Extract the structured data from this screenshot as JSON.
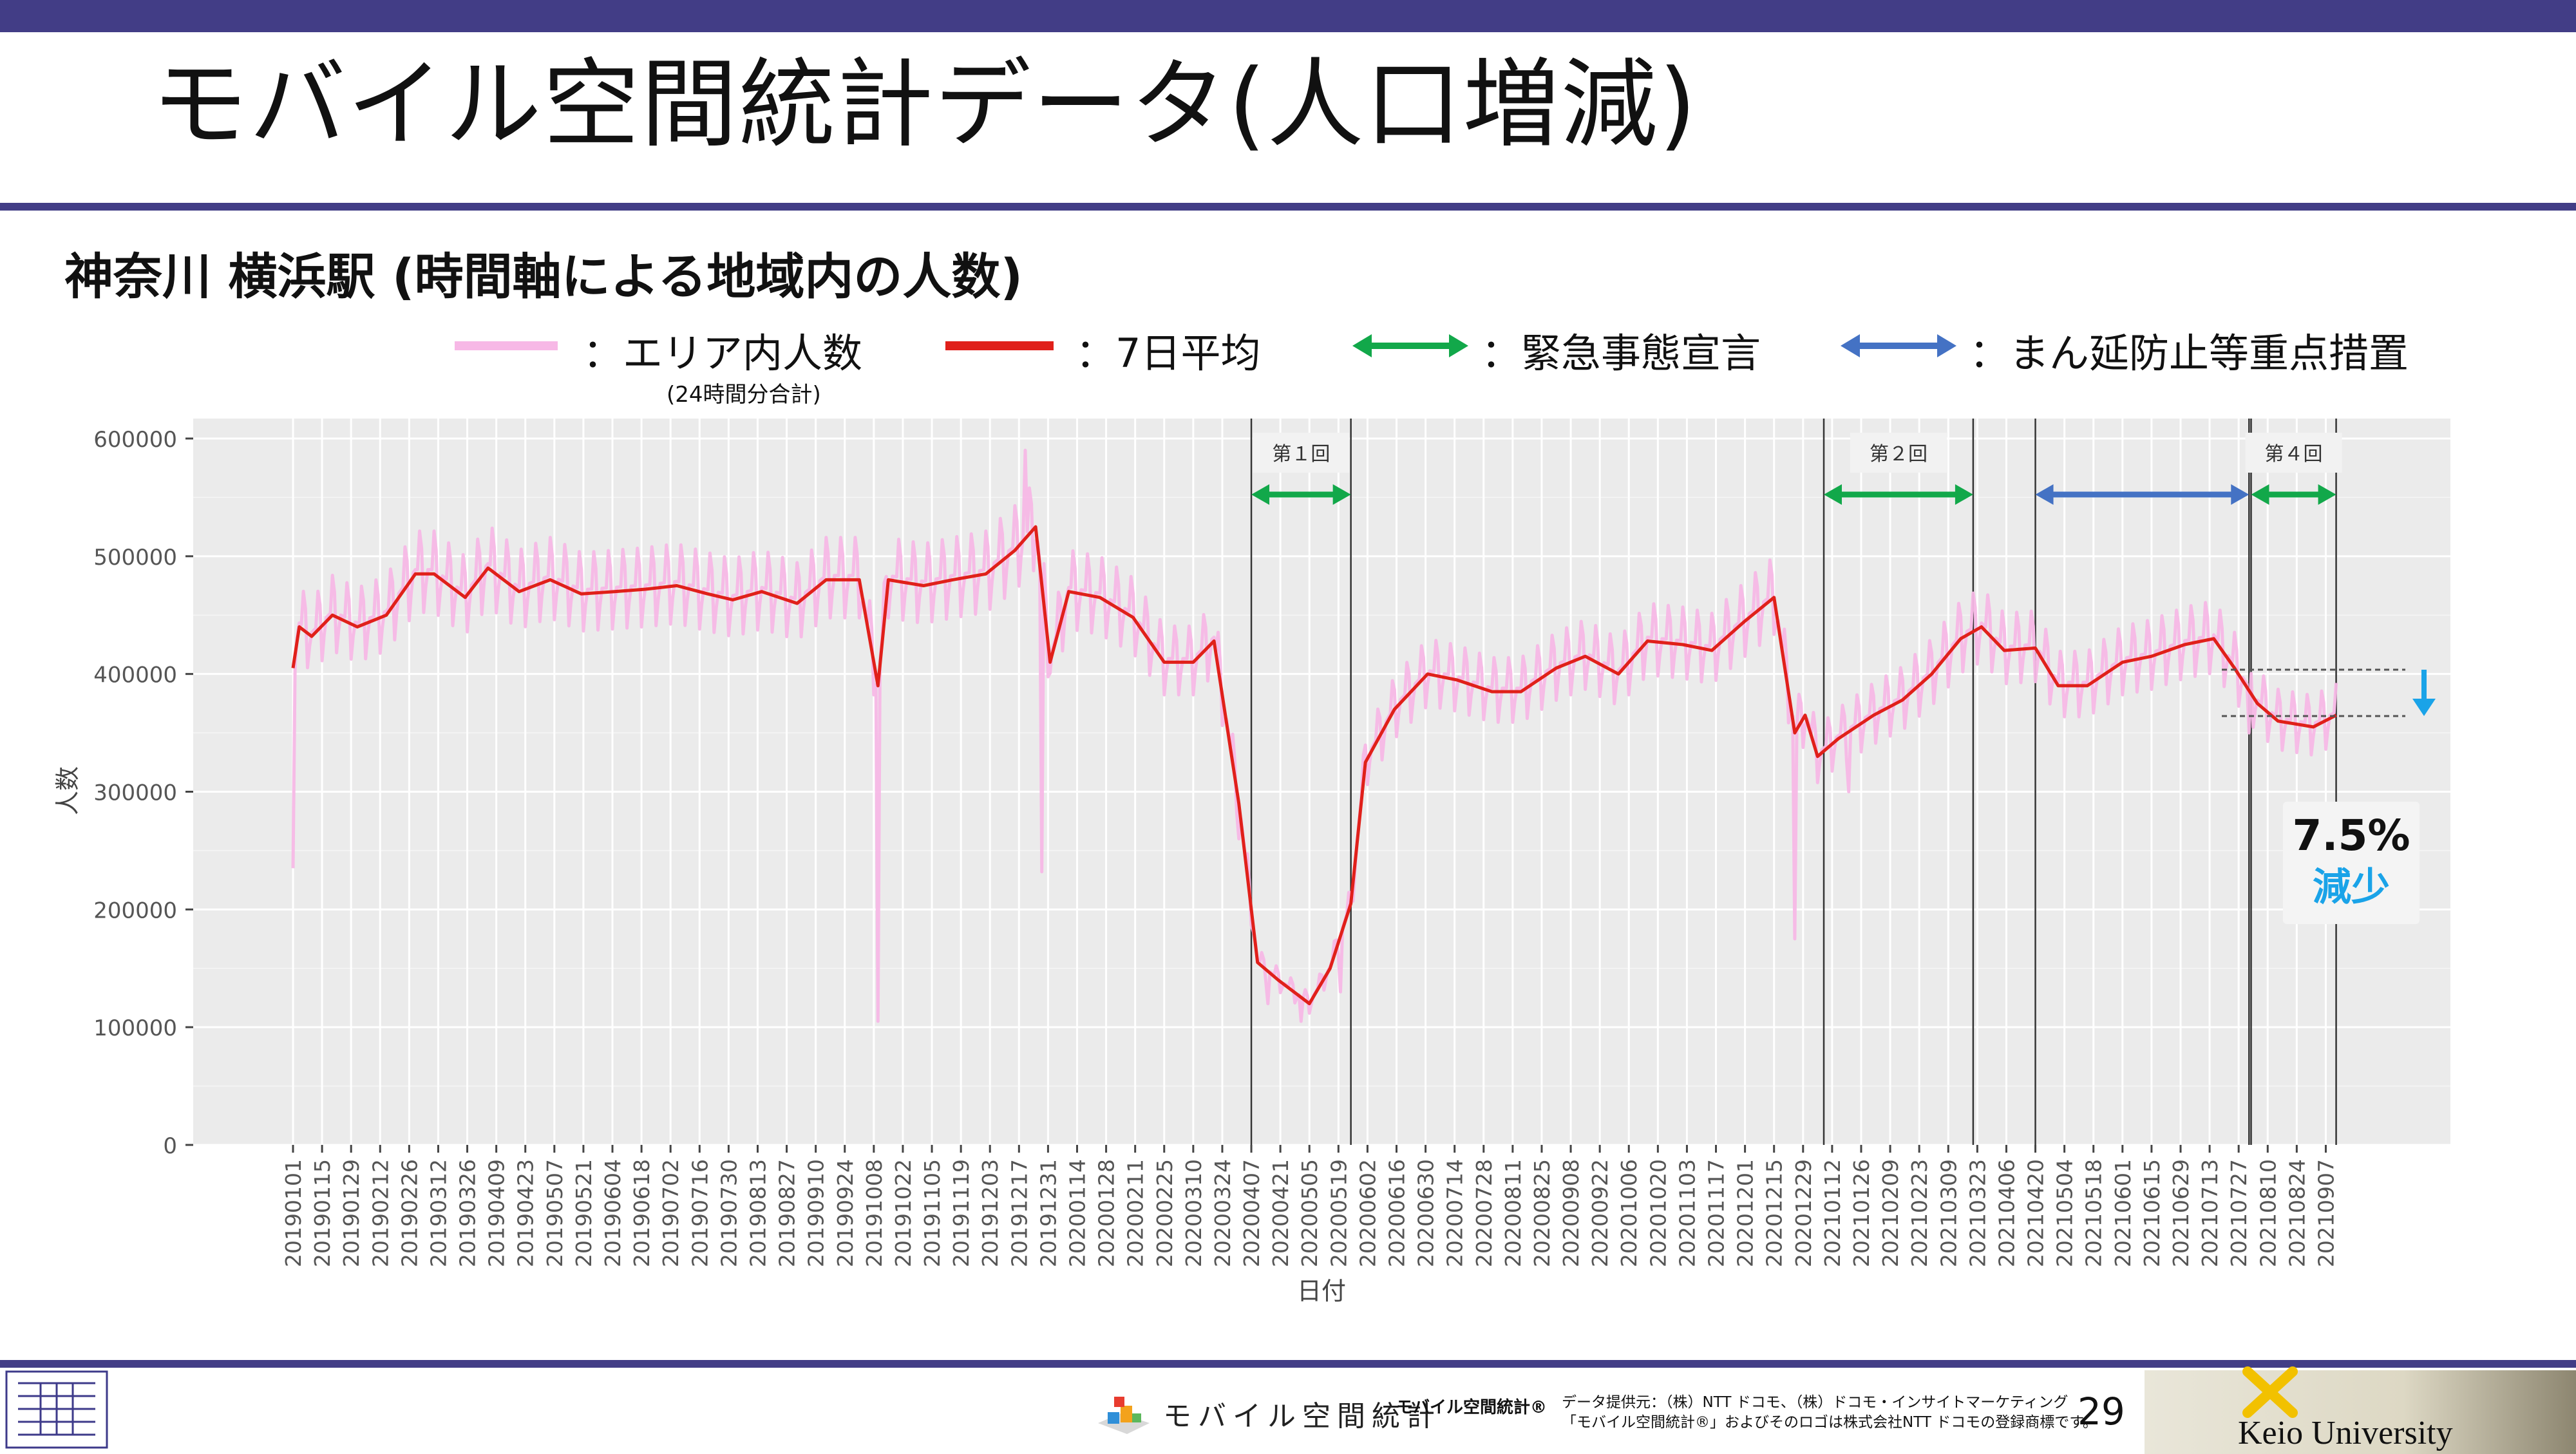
{
  "header": {
    "title": "モバイル空間統計データ(人口増減)",
    "subtitle": "神奈川 横浜駅 (時間軸による地域内の人数)"
  },
  "legend": {
    "items": [
      {
        "label": "：エリア内人数",
        "note": "(24時間分合計)",
        "color": "#f7b8e6"
      },
      {
        "label": "：7日平均",
        "color": "#e0201a"
      },
      {
        "label": "：緊急事態宣言",
        "color": "#12a84a"
      },
      {
        "label": "：まん延防止等重点措置",
        "color": "#4472c4"
      }
    ]
  },
  "chart_data": {
    "type": "line",
    "xlabel": "日付",
    "ylabel": "人数",
    "ylim": [
      0,
      600000
    ],
    "yticks": [
      "0",
      "100000",
      "200000",
      "300000",
      "400000",
      "500000",
      "600000"
    ],
    "x_range": [
      "20190101",
      "20210914"
    ],
    "xticks": [
      "20190101",
      "20190115",
      "20190129",
      "20190212",
      "20190226",
      "20190312",
      "20190326",
      "20190409",
      "20190423",
      "20190507",
      "20190521",
      "20190604",
      "20190618",
      "20190702",
      "20190716",
      "20190730",
      "20190813",
      "20190827",
      "20190910",
      "20190924",
      "20191008",
      "20191022",
      "20191105",
      "20191119",
      "20191203",
      "20191217",
      "20191231",
      "20200114",
      "20200128",
      "20200211",
      "20200225",
      "20200310",
      "20200324",
      "20200407",
      "20200421",
      "20200505",
      "20200519",
      "20200602",
      "20200616",
      "20200630",
      "20200714",
      "20200728",
      "20200811",
      "20200825",
      "20200908",
      "20200922",
      "20201006",
      "20201020",
      "20201103",
      "20201117",
      "20201201",
      "20201215",
      "20201229",
      "20210112",
      "20210126",
      "20210209",
      "20210223",
      "20210309",
      "20210323",
      "20210406",
      "20210420",
      "20210504",
      "20210518",
      "20210601",
      "20210615",
      "20210629",
      "20210713",
      "20210727",
      "20210810",
      "20210824",
      "20210907"
    ],
    "grid": true,
    "series": [
      {
        "name": "エリア内人数",
        "color": "#f7b8e6",
        "style": "daily",
        "x": [
          "20190101",
          "20190107",
          "20190201",
          "20190301",
          "20190401",
          "20190501",
          "20190601",
          "20190701",
          "20190801",
          "20190901",
          "20191001",
          "20191010",
          "20191020",
          "20191101",
          "20191201",
          "20191220",
          "20191228",
          "20200105",
          "20200201",
          "20200301",
          "20200320",
          "20200401",
          "20200415",
          "20200501",
          "20200520",
          "20200601",
          "20200615",
          "20200701",
          "20200801",
          "20200901",
          "20201001",
          "20201101",
          "20201201",
          "20201225",
          "20210105",
          "20210120",
          "20210201",
          "20210301",
          "20210320",
          "20210401",
          "20210501",
          "20210601",
          "20210701",
          "20210725",
          "20210801",
          "20210820",
          "20210912"
        ],
        "values": [
          235000,
          420000,
          455000,
          450000,
          490000,
          475000,
          475000,
          480000,
          450000,
          465000,
          480000,
          105000,
          470000,
          478000,
          490000,
          590000,
          232000,
          470000,
          460000,
          400000,
          425000,
          260000,
          120000,
          105000,
          130000,
          315000,
          380000,
          400000,
          385000,
          410000,
          420000,
          420000,
          440000,
          175000,
          340000,
          300000,
          345000,
          390000,
          445000,
          420000,
          370000,
          410000,
          430000,
          440000,
          350000,
          330000,
          345000
        ]
      },
      {
        "name": "7日平均",
        "color": "#e0201a",
        "style": "line",
        "x": [
          "20190101",
          "20190104",
          "20190110",
          "20190120",
          "20190201",
          "20190215",
          "20190301",
          "20190310",
          "20190325",
          "20190405",
          "20190420",
          "20190505",
          "20190520",
          "20190605",
          "20190620",
          "20190705",
          "20190720",
          "20190801",
          "20190815",
          "20190901",
          "20190915",
          "20191001",
          "20191010",
          "20191015",
          "20191101",
          "20191115",
          "20191201",
          "20191215",
          "20191225",
          "20200101",
          "20200110",
          "20200125",
          "20200210",
          "20200225",
          "20200310",
          "20200320",
          "20200401",
          "20200410",
          "20200420",
          "20200505",
          "20200515",
          "20200525",
          "20200601",
          "20200615",
          "20200701",
          "20200715",
          "20200801",
          "20200815",
          "20200901",
          "20200915",
          "20201001",
          "20201015",
          "20201101",
          "20201115",
          "20201201",
          "20201215",
          "20201225",
          "20201230",
          "20210105",
          "20210115",
          "20210201",
          "20210215",
          "20210301",
          "20210315",
          "20210325",
          "20210405",
          "20210420",
          "20210501",
          "20210515",
          "20210601",
          "20210615",
          "20210701",
          "20210715",
          "20210725",
          "20210805",
          "20210815",
          "20210901",
          "20210912"
        ],
        "values": [
          405000,
          440000,
          432000,
          450000,
          440000,
          450000,
          485000,
          485000,
          465000,
          490000,
          470000,
          480000,
          468000,
          470000,
          472000,
          475000,
          468000,
          463000,
          470000,
          460000,
          480000,
          480000,
          390000,
          480000,
          475000,
          480000,
          485000,
          505000,
          525000,
          410000,
          470000,
          465000,
          448000,
          410000,
          410000,
          428000,
          290000,
          155000,
          140000,
          120000,
          150000,
          205000,
          325000,
          370000,
          400000,
          395000,
          385000,
          385000,
          405000,
          415000,
          400000,
          428000,
          425000,
          420000,
          445000,
          465000,
          350000,
          365000,
          330000,
          345000,
          365000,
          378000,
          400000,
          430000,
          440000,
          420000,
          422000,
          390000,
          390000,
          410000,
          415000,
          425000,
          430000,
          405000,
          375000,
          360000,
          355000,
          365000
        ]
      }
    ],
    "periods": [
      {
        "label": "第１回",
        "type": "緊急事態宣言",
        "start": "20200407",
        "end": "20200525"
      },
      {
        "label": "第２回",
        "type": "緊急事態宣言",
        "start": "20210108",
        "end": "20210321"
      },
      {
        "label": "",
        "type": "まん延防止等重点措置",
        "start": "20210420",
        "end": "20210801"
      },
      {
        "label": "第４回",
        "type": "緊急事態宣言",
        "start": "20210802",
        "end": "20210912"
      }
    ],
    "annotation": {
      "value": "7.5%",
      "text": "減少"
    }
  },
  "footer": {
    "mobile_logo": "モバイル空間統計",
    "mobile_reg": "モバイル空間統計®",
    "provider_line1": "データ提供元：（株）NTT ドコモ、（株）ドコモ・インサイトマーケティング",
    "provider_line2": "「モバイル空間統計®」およびそのロゴは株式会社NTT ドコモの登録商標です。",
    "page": "29",
    "keio": "Keio University"
  }
}
